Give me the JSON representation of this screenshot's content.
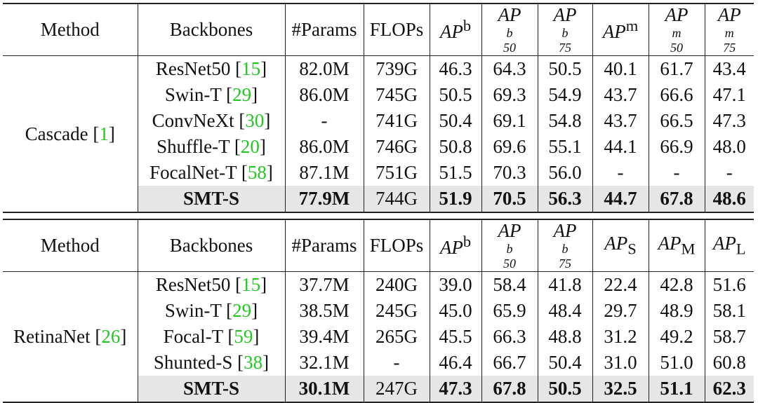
{
  "tables": [
    {
      "headers": {
        "method": "Method",
        "backbones": "Backbones",
        "params": "#Params",
        "flops": "FLOPs",
        "m1": {
          "base": "AP",
          "sup": "b",
          "sub": ""
        },
        "m2": {
          "base": "AP",
          "sup": "b",
          "sub": "50"
        },
        "m3": {
          "base": "AP",
          "sup": "b",
          "sub": "75"
        },
        "m4": {
          "base": "AP",
          "sup": "m",
          "sub": ""
        },
        "m5": {
          "base": "AP",
          "sup": "m",
          "sub": "50"
        },
        "m6": {
          "base": "AP",
          "sup": "m",
          "sub": "75"
        }
      },
      "method": {
        "name": "Cascade ",
        "ref": "1"
      },
      "rows": [
        {
          "backbone": "ResNet50 ",
          "ref": "15",
          "params": "82.0M",
          "flops": "739G",
          "v": [
            "46.3",
            "64.3",
            "50.5",
            "40.1",
            "61.7",
            "43.4"
          ]
        },
        {
          "backbone": "Swin-T ",
          "ref": "29",
          "params": "86.0M",
          "flops": "745G",
          "v": [
            "50.5",
            "69.3",
            "54.9",
            "43.7",
            "66.6",
            "47.1"
          ]
        },
        {
          "backbone": "ConvNeXt ",
          "ref": "30",
          "params": "-",
          "flops": "741G",
          "v": [
            "50.4",
            "69.1",
            "54.8",
            "43.7",
            "66.5",
            "47.3"
          ]
        },
        {
          "backbone": "Shuffle-T ",
          "ref": "20",
          "params": "86.0M",
          "flops": "746G",
          "v": [
            "50.8",
            "69.6",
            "55.1",
            "44.1",
            "66.9",
            "48.0"
          ]
        },
        {
          "backbone": "FocalNet-T ",
          "ref": "58",
          "params": "87.1M",
          "flops": "751G",
          "v": [
            "51.5",
            "70.3",
            "56.0",
            "-",
            "-",
            "-"
          ]
        }
      ],
      "ours": {
        "backbone": "SMT-S",
        "params": "77.9M",
        "flops": "744G",
        "v": [
          "51.9",
          "70.5",
          "56.3",
          "44.7",
          "67.8",
          "48.6"
        ]
      }
    },
    {
      "headers": {
        "method": "Method",
        "backbones": "Backbones",
        "params": "#Params",
        "flops": "FLOPs",
        "m1": {
          "base": "AP",
          "sup": "b",
          "sub": ""
        },
        "m2": {
          "base": "AP",
          "sup": "b",
          "sub": "50"
        },
        "m3": {
          "base": "AP",
          "sup": "b",
          "sub": "75"
        },
        "m4": {
          "base": "AP",
          "sup": "",
          "sub": "S"
        },
        "m5": {
          "base": "AP",
          "sup": "",
          "sub": "M"
        },
        "m6": {
          "base": "AP",
          "sup": "",
          "sub": "L"
        }
      },
      "method": {
        "name": "RetinaNet ",
        "ref": "26"
      },
      "rows": [
        {
          "backbone": "ResNet50 ",
          "ref": "15",
          "params": "37.7M",
          "flops": "240G",
          "v": [
            "39.0",
            "58.4",
            "41.8",
            "22.4",
            "42.8",
            "51.6"
          ]
        },
        {
          "backbone": "Swin-T ",
          "ref": "29",
          "params": "38.5M",
          "flops": "245G",
          "v": [
            "45.0",
            "65.9",
            "48.4",
            "29.7",
            "48.9",
            "58.1"
          ]
        },
        {
          "backbone": "Focal-T ",
          "ref": "59",
          "params": "39.4M",
          "flops": "265G",
          "v": [
            "45.5",
            "66.3",
            "48.8",
            "31.2",
            "49.2",
            "58.7"
          ]
        },
        {
          "backbone": "Shunted-S ",
          "ref": "38",
          "params": "32.1M",
          "flops": "-",
          "v": [
            "46.4",
            "66.7",
            "50.4",
            "31.0",
            "51.0",
            "60.8"
          ]
        }
      ],
      "ours": {
        "backbone": "SMT-S",
        "params": "30.1M",
        "flops": "247G",
        "v": [
          "47.3",
          "67.8",
          "50.5",
          "32.5",
          "51.1",
          "62.3"
        ]
      }
    }
  ],
  "colors": {
    "ref": "#22c722",
    "shade": "#e6e6e6"
  }
}
